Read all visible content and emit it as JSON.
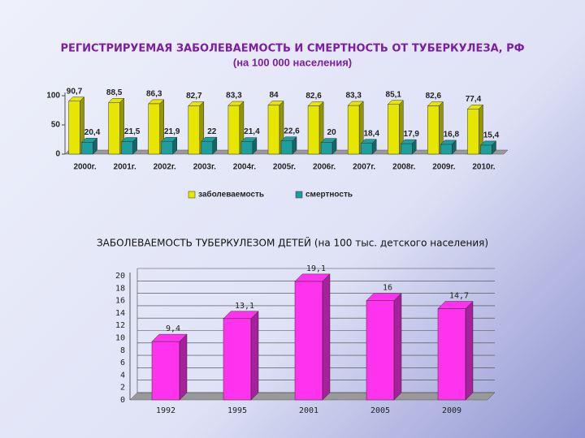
{
  "chart_data": [
    {
      "type": "bar",
      "title": "РЕГИСТРИРУЕМАЯ ЗАБОЛЕВАЕМОСТЬ И СМЕРТНОСТЬ ОТ ТУБЕРКУЛЕЗА, РФ",
      "subtitle": "(на 100 000 населения)",
      "categories": [
        "2000г.",
        "2001г.",
        "2002г.",
        "2003г.",
        "2004г.",
        "2005г.",
        "2006г.",
        "2007г.",
        "2008г.",
        "2009г.",
        "2010г."
      ],
      "series": [
        {
          "name": "заболеваемость",
          "color": "#e6e600",
          "values": [
            90.7,
            88.5,
            86.3,
            82.7,
            83.3,
            84,
            82.6,
            83.3,
            85.1,
            82.6,
            77.4
          ],
          "value_labels": [
            "90,7",
            "88,5",
            "86,3",
            "82,7",
            "83,3",
            "84",
            "82,6",
            "83,3",
            "85,1",
            "82,6",
            "77,4"
          ]
        },
        {
          "name": "смертность",
          "color": "#1f9e9e",
          "values": [
            20.4,
            21.5,
            21.9,
            22,
            21.4,
            22.6,
            20,
            18.4,
            17.9,
            16.8,
            15.4
          ],
          "value_labels": [
            "20,4",
            "21,5",
            "21,9",
            "22",
            "21,4",
            "22,6",
            "20",
            "18,4",
            "17,9",
            "16,8",
            "15,4"
          ]
        }
      ],
      "ylim": [
        0,
        100
      ],
      "yticks": [
        0,
        50,
        100
      ],
      "grid": false,
      "legend": "bottom"
    },
    {
      "type": "bar",
      "title": "ЗАБОЛЕВАЕМОСТЬ ТУБЕРКУЛЕЗОМ ДЕТЕЙ (на 100 тыс. детского населения)",
      "categories": [
        "1992",
        "1995",
        "2001",
        "2005",
        "2009"
      ],
      "values": [
        9.4,
        13.1,
        19.1,
        16,
        14.7
      ],
      "value_labels": [
        "9,4",
        "13,1",
        "19,1",
        "16",
        "14,7"
      ],
      "color": "#ff33ee",
      "ylim": [
        0,
        20
      ],
      "yticks": [
        0,
        2,
        4,
        6,
        8,
        10,
        12,
        14,
        16,
        18,
        20
      ],
      "grid": true
    }
  ]
}
